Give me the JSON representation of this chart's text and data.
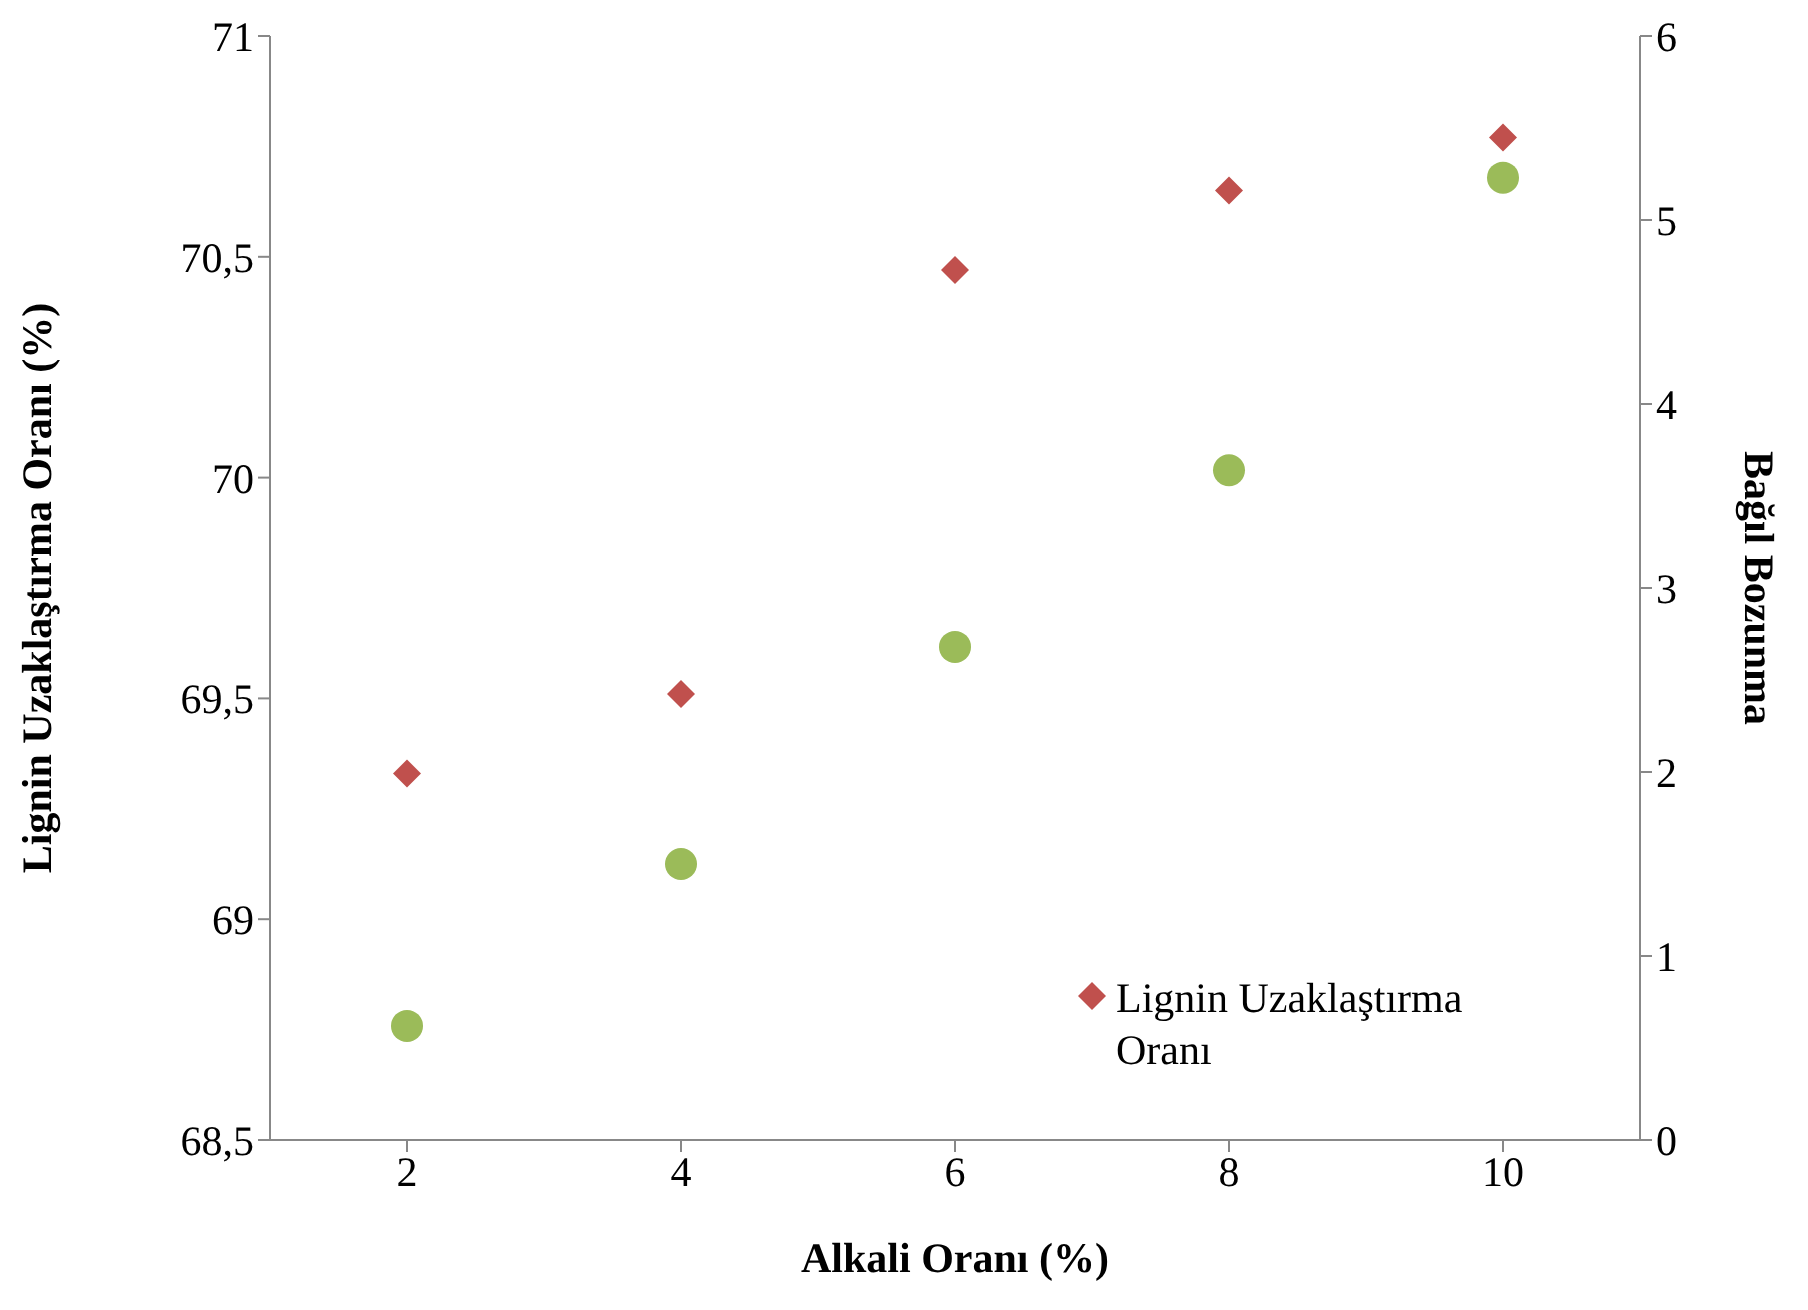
{
  "chart_data": {
    "type": "scatter",
    "xlabel": "Alkali Oranı (%)",
    "ylabel": "Lignin Uzaklaştırma Oranı (%)",
    "y2label": "Bağıl Bozunma",
    "categories": [
      "2",
      "4",
      "6",
      "8",
      "10"
    ],
    "series": [
      {
        "name": "Lignin Uzaklaştırma Oranı",
        "color": "#c0504d",
        "marker": "diamond",
        "values": [
          69.33,
          69.51,
          70.47,
          70.65,
          70.77
        ]
      },
      {
        "color": "#9bbb59",
        "marker": "circle",
        "axis": "y2",
        "values": [
          0.62,
          1.5,
          2.68,
          3.64,
          5.23
        ]
      }
    ],
    "ylim": [
      68.5,
      71
    ],
    "yticks": [
      {
        "value": 68.5,
        "label": "68,5"
      },
      69,
      {
        "value": 69.5,
        "label": "69,5"
      },
      70,
      {
        "value": 70.5,
        "label": "70,5"
      },
      71
    ],
    "y2lim": [
      0,
      6
    ],
    "y2ticks": [
      0,
      1,
      2,
      3,
      4,
      5,
      6
    ],
    "legend": "bottom right"
  }
}
